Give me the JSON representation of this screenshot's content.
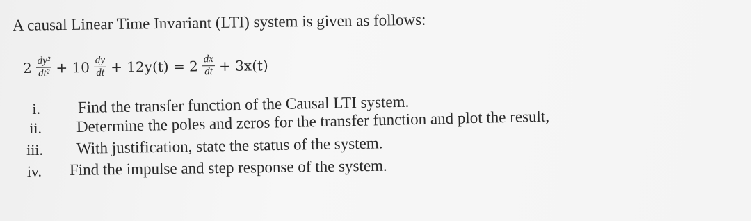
{
  "intro": "A causal Linear Time Invariant (LTI) system is given as follows:",
  "equation": [
    {
      "text": "2"
    },
    {
      "num": "dy²",
      "den": "dt²"
    },
    {
      "text": "+ 10"
    },
    {
      "num": "dy",
      "den": "dt"
    },
    {
      "text": "+ 12y(t) = 2"
    },
    {
      "num": "dx",
      "den": "dt"
    },
    {
      "text": "+ 3x(t)"
    }
  ],
  "items": [
    {
      "label": "i.",
      "text": "Find the transfer function of the Causal LTI system."
    },
    {
      "label": "ii.",
      "text": "Determine the poles and zeros for the transfer function and plot the result,"
    },
    {
      "label": "iii.",
      "text": "With justification, state the status of the system."
    },
    {
      "label": "iv.",
      "text": "Find the impulse and step response of the system."
    }
  ]
}
